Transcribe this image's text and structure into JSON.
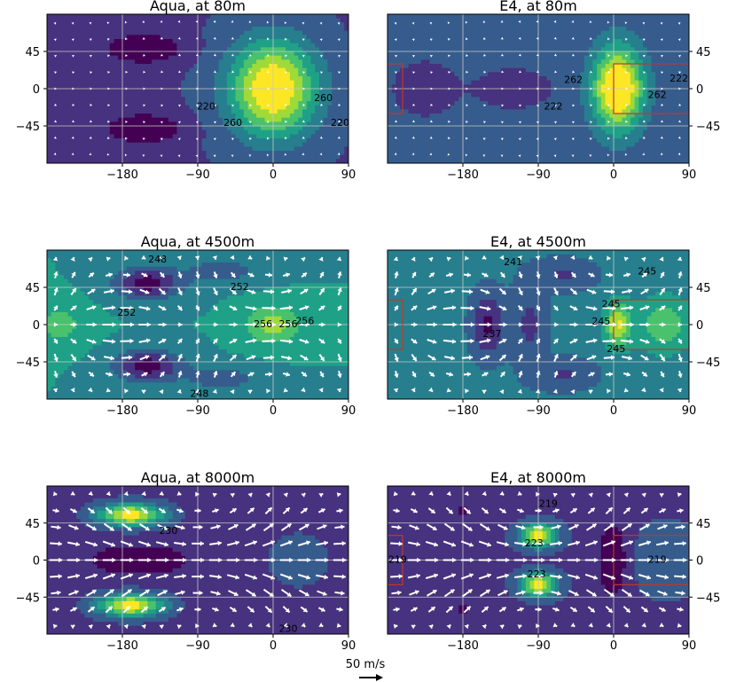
{
  "figure": {
    "scale_label": "50 m/s",
    "colors": {
      "background": "#ffffff",
      "viridis": [
        "#440154",
        "#46327e",
        "#365c8d",
        "#277f8e",
        "#1fa187",
        "#4ac16d",
        "#a0da39",
        "#fde725"
      ],
      "arrow": "#ffffff",
      "grid": "#c8c8c8",
      "substellar_box": "#c0392b"
    }
  },
  "chart_data": [
    {
      "type": "heatmap",
      "title": "Aqua, at 80m",
      "xlim": [
        -270,
        90
      ],
      "ylim": [
        -90,
        90
      ],
      "xticks": [
        -180,
        -90,
        0,
        90
      ],
      "xtick_labels": [
        "−180",
        "−90",
        "0",
        "90"
      ],
      "yticks": [
        45,
        0,
        -45
      ],
      "ytick_labels": [
        "45",
        "0",
        "−45"
      ],
      "ytick_side": "left",
      "grid": true,
      "arrow_magnitude": "small",
      "contour_labels": [
        {
          "text": "220",
          "x": -80,
          "y": -22
        },
        {
          "text": "260",
          "x": -48,
          "y": -42
        },
        {
          "text": "260",
          "x": 60,
          "y": -12
        },
        {
          "text": "220",
          "x": 80,
          "y": -42
        }
      ]
    },
    {
      "type": "heatmap",
      "title": "E4, at 80m",
      "xlim": [
        -270,
        90
      ],
      "ylim": [
        -90,
        90
      ],
      "xticks": [
        -180,
        -90,
        0,
        90
      ],
      "xtick_labels": [
        "−180",
        "−90",
        "0",
        "90"
      ],
      "yticks": [
        45,
        0,
        -45
      ],
      "ytick_labels": [
        "45",
        "0",
        "−45"
      ],
      "ytick_side": "right",
      "grid": true,
      "arrow_magnitude": "small",
      "contour_labels": [
        {
          "text": "222",
          "x": -72,
          "y": -22
        },
        {
          "text": "262",
          "x": -48,
          "y": 10
        },
        {
          "text": "262",
          "x": 52,
          "y": -8
        },
        {
          "text": "222",
          "x": 78,
          "y": 12
        }
      ]
    },
    {
      "type": "heatmap",
      "title": "Aqua, at 4500m",
      "xlim": [
        -270,
        90
      ],
      "ylim": [
        -90,
        90
      ],
      "xticks": [
        -180,
        -90,
        0,
        90
      ],
      "xtick_labels": [
        "−180",
        "−90",
        "0",
        "90"
      ],
      "yticks": [
        45,
        0,
        -45
      ],
      "ytick_labels": [
        "45",
        "0",
        "−45"
      ],
      "ytick_side": "left",
      "grid": true,
      "arrow_magnitude": "large",
      "contour_labels": [
        {
          "text": "248",
          "x": -138,
          "y": 78
        },
        {
          "text": "252",
          "x": -40,
          "y": 45
        },
        {
          "text": "252",
          "x": -175,
          "y": 14
        },
        {
          "text": "256",
          "x": -12,
          "y": 0
        },
        {
          "text": "256",
          "x": 18,
          "y": 0
        },
        {
          "text": "256",
          "x": 38,
          "y": 4
        },
        {
          "text": "248",
          "x": -88,
          "y": -84
        }
      ]
    },
    {
      "type": "heatmap",
      "title": "E4, at 4500m",
      "xlim": [
        -270,
        90
      ],
      "ylim": [
        -90,
        90
      ],
      "xticks": [
        -180,
        -90,
        0,
        90
      ],
      "xtick_labels": [
        "−180",
        "−90",
        "0",
        "90"
      ],
      "yticks": [
        45,
        0,
        -45
      ],
      "ytick_labels": [
        "45",
        "0",
        "−45"
      ],
      "ytick_side": "right",
      "grid": true,
      "arrow_magnitude": "large",
      "contour_labels": [
        {
          "text": "241",
          "x": -120,
          "y": 75
        },
        {
          "text": "245",
          "x": 40,
          "y": 64
        },
        {
          "text": "245",
          "x": -3,
          "y": 24
        },
        {
          "text": "245",
          "x": -15,
          "y": 3
        },
        {
          "text": "237",
          "x": -145,
          "y": -12
        },
        {
          "text": "245",
          "x": 3,
          "y": -30
        }
      ]
    },
    {
      "type": "heatmap",
      "title": "Aqua, at 8000m",
      "xlim": [
        -270,
        90
      ],
      "ylim": [
        -90,
        90
      ],
      "xticks": [
        -180,
        -90,
        0,
        90
      ],
      "xtick_labels": [
        "−180",
        "−90",
        "0",
        "90"
      ],
      "yticks": [
        45,
        0,
        -45
      ],
      "ytick_labels": [
        "45",
        "0",
        "−45"
      ],
      "ytick_side": "left",
      "grid": true,
      "arrow_magnitude": "large",
      "contour_labels": [
        {
          "text": "230",
          "x": -125,
          "y": 35
        },
        {
          "text": "230",
          "x": 18,
          "y": -84
        }
      ]
    },
    {
      "type": "heatmap",
      "title": "E4, at 8000m",
      "xlim": [
        -270,
        90
      ],
      "ylim": [
        -90,
        90
      ],
      "xticks": [
        -180,
        -90,
        0,
        90
      ],
      "xtick_labels": [
        "−180",
        "−90",
        "0",
        "90"
      ],
      "yticks": [
        45,
        0,
        -45
      ],
      "ytick_labels": [
        "45",
        "0",
        "−45"
      ],
      "ytick_side": "right",
      "grid": true,
      "arrow_magnitude": "large",
      "contour_labels": [
        {
          "text": "219",
          "x": -78,
          "y": 68
        },
        {
          "text": "223",
          "x": -95,
          "y": 20
        },
        {
          "text": "223",
          "x": -92,
          "y": -18
        },
        {
          "text": "219",
          "x": -258,
          "y": 0
        },
        {
          "text": "219",
          "x": 52,
          "y": 0
        }
      ]
    }
  ]
}
